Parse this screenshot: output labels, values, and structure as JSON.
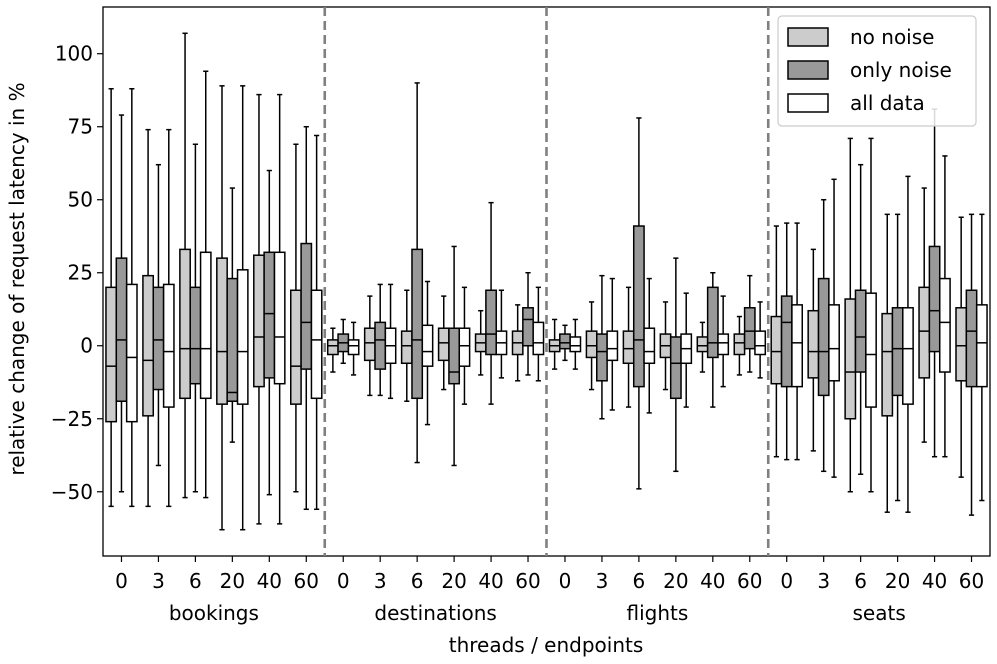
{
  "chart_data": {
    "type": "box",
    "title": "",
    "xlabel": "threads / endpoints",
    "ylabel": "relative change of request latency in %",
    "ylim": [
      -72,
      116
    ],
    "yticks": [
      -50,
      -25,
      0,
      25,
      50,
      75,
      100
    ],
    "grid": false,
    "legend": {
      "placement": "top-right",
      "entries": [
        {
          "label": "no noise",
          "color": "#cccccc"
        },
        {
          "label": "only noise",
          "color": "#999999"
        },
        {
          "label": "all data",
          "color": "#ffffff"
        }
      ]
    },
    "thread_levels": [
      "0",
      "3",
      "6",
      "20",
      "40",
      "60"
    ],
    "endpoints": [
      {
        "name": "bookings",
        "groups": [
          {
            "thread": "0",
            "boxes": [
              {
                "series": "no noise",
                "whislo": -55,
                "q1": -26,
                "med": -7,
                "q3": 20,
                "whishi": 88
              },
              {
                "series": "only noise",
                "whislo": -50,
                "q1": -19,
                "med": 2,
                "q3": 30,
                "whishi": 79
              },
              {
                "series": "all data",
                "whislo": -55,
                "q1": -26,
                "med": -4,
                "q3": 21,
                "whishi": 88
              }
            ]
          },
          {
            "thread": "3",
            "boxes": [
              {
                "series": "no noise",
                "whislo": -55,
                "q1": -24,
                "med": -5,
                "q3": 24,
                "whishi": 74
              },
              {
                "series": "only noise",
                "whislo": -41,
                "q1": -15,
                "med": 2,
                "q3": 20,
                "whishi": 62
              },
              {
                "series": "all data",
                "whislo": -55,
                "q1": -21,
                "med": -2,
                "q3": 21,
                "whishi": 74
              }
            ]
          },
          {
            "thread": "6",
            "boxes": [
              {
                "series": "no noise",
                "whislo": -52,
                "q1": -18,
                "med": -1,
                "q3": 33,
                "whishi": 107
              },
              {
                "series": "only noise",
                "whislo": -50,
                "q1": -13,
                "med": -1,
                "q3": 20,
                "whishi": 69
              },
              {
                "series": "all data",
                "whislo": -52,
                "q1": -18,
                "med": -1,
                "q3": 32,
                "whishi": 94
              }
            ]
          },
          {
            "thread": "20",
            "boxes": [
              {
                "series": "no noise",
                "whislo": -63,
                "q1": -20,
                "med": -2,
                "q3": 30,
                "whishi": 89
              },
              {
                "series": "only noise",
                "whislo": -33,
                "q1": -19,
                "med": -16,
                "q3": 23,
                "whishi": 54
              },
              {
                "series": "all data",
                "whislo": -63,
                "q1": -20,
                "med": -2,
                "q3": 26,
                "whishi": 89
              }
            ]
          },
          {
            "thread": "40",
            "boxes": [
              {
                "series": "no noise",
                "whislo": -61,
                "q1": -14,
                "med": 3,
                "q3": 31,
                "whishi": 86
              },
              {
                "series": "only noise",
                "whislo": -51,
                "q1": -11,
                "med": 11,
                "q3": 32,
                "whishi": 60
              },
              {
                "series": "all data",
                "whislo": -61,
                "q1": -13,
                "med": 3,
                "q3": 32,
                "whishi": 86
              }
            ]
          },
          {
            "thread": "60",
            "boxes": [
              {
                "series": "no noise",
                "whislo": -50,
                "q1": -20,
                "med": -7,
                "q3": 19,
                "whishi": 69
              },
              {
                "series": "only noise",
                "whislo": -56,
                "q1": -8,
                "med": 8,
                "q3": 35,
                "whishi": 75
              },
              {
                "series": "all data",
                "whislo": -56,
                "q1": -18,
                "med": 2,
                "q3": 19,
                "whishi": 72
              }
            ]
          }
        ]
      },
      {
        "name": "destinations",
        "groups": [
          {
            "thread": "0",
            "boxes": [
              {
                "series": "no noise",
                "whislo": -9,
                "q1": -3,
                "med": 0,
                "q3": 2,
                "whishi": 6
              },
              {
                "series": "only noise",
                "whislo": -6,
                "q1": -2,
                "med": 1,
                "q3": 4,
                "whishi": 9
              },
              {
                "series": "all data",
                "whislo": -10,
                "q1": -3,
                "med": 0,
                "q3": 2,
                "whishi": 8
              }
            ]
          },
          {
            "thread": "3",
            "boxes": [
              {
                "series": "no noise",
                "whislo": -17,
                "q1": -5,
                "med": 1,
                "q3": 6,
                "whishi": 17
              },
              {
                "series": "only noise",
                "whislo": -17,
                "q1": -8,
                "med": 2,
                "q3": 8,
                "whishi": 21
              },
              {
                "series": "all data",
                "whislo": -18,
                "q1": -6,
                "med": 0,
                "q3": 6,
                "whishi": 21
              }
            ]
          },
          {
            "thread": "6",
            "boxes": [
              {
                "series": "no noise",
                "whislo": -19,
                "q1": -6,
                "med": 0,
                "q3": 5,
                "whishi": 19
              },
              {
                "series": "only noise",
                "whislo": -40,
                "q1": -18,
                "med": 2,
                "q3": 33,
                "whishi": 90
              },
              {
                "series": "all data",
                "whislo": -27,
                "q1": -7,
                "med": -2,
                "q3": 7,
                "whishi": 22
              }
            ]
          },
          {
            "thread": "20",
            "boxes": [
              {
                "series": "no noise",
                "whislo": -15,
                "q1": -5,
                "med": 1,
                "q3": 6,
                "whishi": 17
              },
              {
                "series": "only noise",
                "whislo": -41,
                "q1": -13,
                "med": -9,
                "q3": 6,
                "whishi": 34
              },
              {
                "series": "all data",
                "whislo": -20,
                "q1": -7,
                "med": 0,
                "q3": 6,
                "whishi": 20
              }
            ]
          },
          {
            "thread": "40",
            "boxes": [
              {
                "series": "no noise",
                "whislo": -10,
                "q1": -2,
                "med": 1,
                "q3": 4,
                "whishi": 12
              },
              {
                "series": "only noise",
                "whislo": -20,
                "q1": -3,
                "med": 4,
                "q3": 19,
                "whishi": 49
              },
              {
                "series": "all data",
                "whislo": -11,
                "q1": -3,
                "med": 1,
                "q3": 5,
                "whishi": 19
              }
            ]
          },
          {
            "thread": "60",
            "boxes": [
              {
                "series": "no noise",
                "whislo": -12,
                "q1": -3,
                "med": 1,
                "q3": 5,
                "whishi": 14
              },
              {
                "series": "only noise",
                "whislo": -10,
                "q1": 0,
                "med": 9,
                "q3": 13,
                "whishi": 25
              },
              {
                "series": "all data",
                "whislo": -12,
                "q1": -3,
                "med": 1,
                "q3": 8,
                "whishi": 20
              }
            ]
          }
        ]
      },
      {
        "name": "flights",
        "groups": [
          {
            "thread": "0",
            "boxes": [
              {
                "series": "no noise",
                "whislo": -8,
                "q1": -2,
                "med": 0,
                "q3": 2,
                "whishi": 9
              },
              {
                "series": "only noise",
                "whislo": -5,
                "q1": -1,
                "med": 1,
                "q3": 4,
                "whishi": 7
              },
              {
                "series": "all data",
                "whislo": -8,
                "q1": -2,
                "med": 0,
                "q3": 3,
                "whishi": 9
              }
            ]
          },
          {
            "thread": "3",
            "boxes": [
              {
                "series": "no noise",
                "whislo": -15,
                "q1": -4,
                "med": 0,
                "q3": 5,
                "whishi": 15
              },
              {
                "series": "only noise",
                "whislo": -25,
                "q1": -12,
                "med": -2,
                "q3": 4,
                "whishi": 24
              },
              {
                "series": "all data",
                "whislo": -22,
                "q1": -5,
                "med": -1,
                "q3": 5,
                "whishi": 23
              }
            ]
          },
          {
            "thread": "6",
            "boxes": [
              {
                "series": "no noise",
                "whislo": -21,
                "q1": -6,
                "med": -1,
                "q3": 5,
                "whishi": 20
              },
              {
                "series": "only noise",
                "whislo": -49,
                "q1": -14,
                "med": 2,
                "q3": 41,
                "whishi": 78
              },
              {
                "series": "all data",
                "whislo": -23,
                "q1": -6,
                "med": -2,
                "q3": 6,
                "whishi": 23
              }
            ]
          },
          {
            "thread": "20",
            "boxes": [
              {
                "series": "no noise",
                "whislo": -15,
                "q1": -4,
                "med": 0,
                "q3": 4,
                "whishi": 15
              },
              {
                "series": "only noise",
                "whislo": -43,
                "q1": -18,
                "med": -6,
                "q3": 3,
                "whishi": 30
              },
              {
                "series": "all data",
                "whislo": -21,
                "q1": -6,
                "med": -1,
                "q3": 4,
                "whishi": 18
              }
            ]
          },
          {
            "thread": "40",
            "boxes": [
              {
                "series": "no noise",
                "whislo": -9,
                "q1": -2,
                "med": 0,
                "q3": 3,
                "whishi": 8
              },
              {
                "series": "only noise",
                "whislo": -21,
                "q1": -4,
                "med": 1,
                "q3": 20,
                "whishi": 25
              },
              {
                "series": "all data",
                "whislo": -14,
                "q1": -3,
                "med": 1,
                "q3": 4,
                "whishi": 17
              }
            ]
          },
          {
            "thread": "60",
            "boxes": [
              {
                "series": "no noise",
                "whislo": -10,
                "q1": -3,
                "med": 1,
                "q3": 4,
                "whishi": 10
              },
              {
                "series": "only noise",
                "whislo": -9,
                "q1": -1,
                "med": 5,
                "q3": 13,
                "whishi": 24
              },
              {
                "series": "all data",
                "whislo": -11,
                "q1": -3,
                "med": 0,
                "q3": 5,
                "whishi": 15
              }
            ]
          }
        ]
      },
      {
        "name": "seats",
        "groups": [
          {
            "thread": "0",
            "boxes": [
              {
                "series": "no noise",
                "whislo": -38,
                "q1": -13,
                "med": -2,
                "q3": 10,
                "whishi": 41
              },
              {
                "series": "only noise",
                "whislo": -39,
                "q1": -14,
                "med": 8,
                "q3": 17,
                "whishi": 42
              },
              {
                "series": "all data",
                "whislo": -39,
                "q1": -14,
                "med": 1,
                "q3": 14,
                "whishi": 42
              }
            ]
          },
          {
            "thread": "3",
            "boxes": [
              {
                "series": "no noise",
                "whislo": -36,
                "q1": -11,
                "med": -2,
                "q3": 12,
                "whishi": 33
              },
              {
                "series": "only noise",
                "whislo": -43,
                "q1": -17,
                "med": -2,
                "q3": 23,
                "whishi": 50
              },
              {
                "series": "all data",
                "whislo": -45,
                "q1": -12,
                "med": -1,
                "q3": 14,
                "whishi": 57
              }
            ]
          },
          {
            "thread": "6",
            "boxes": [
              {
                "series": "no noise",
                "whislo": -50,
                "q1": -25,
                "med": -9,
                "q3": 16,
                "whishi": 71
              },
              {
                "series": "only noise",
                "whislo": -44,
                "q1": -9,
                "med": 3,
                "q3": 19,
                "whishi": 62
              },
              {
                "series": "all data",
                "whislo": -50,
                "q1": -21,
                "med": -3,
                "q3": 18,
                "whishi": 71
              }
            ]
          },
          {
            "thread": "20",
            "boxes": [
              {
                "series": "no noise",
                "whislo": -57,
                "q1": -24,
                "med": -2,
                "q3": 11,
                "whishi": 45
              },
              {
                "series": "only noise",
                "whislo": -53,
                "q1": -17,
                "med": -1,
                "q3": 13,
                "whishi": 45
              },
              {
                "series": "all data",
                "whislo": -57,
                "q1": -20,
                "med": -1,
                "q3": 13,
                "whishi": 58
              }
            ]
          },
          {
            "thread": "40",
            "boxes": [
              {
                "series": "no noise",
                "whislo": -33,
                "q1": -11,
                "med": 5,
                "q3": 20,
                "whishi": 54
              },
              {
                "series": "only noise",
                "whislo": -38,
                "q1": -2,
                "med": 12,
                "q3": 34,
                "whishi": 81
              },
              {
                "series": "all data",
                "whislo": -38,
                "q1": -9,
                "med": 8,
                "q3": 23,
                "whishi": 65
              }
            ]
          },
          {
            "thread": "60",
            "boxes": [
              {
                "series": "no noise",
                "whislo": -45,
                "q1": -12,
                "med": 0,
                "q3": 13,
                "whishi": 44
              },
              {
                "series": "only noise",
                "whislo": -58,
                "q1": -14,
                "med": 5,
                "q3": 19,
                "whishi": 45
              },
              {
                "series": "all data",
                "whislo": -53,
                "q1": -14,
                "med": 1,
                "q3": 14,
                "whishi": 45
              }
            ]
          }
        ]
      }
    ]
  }
}
